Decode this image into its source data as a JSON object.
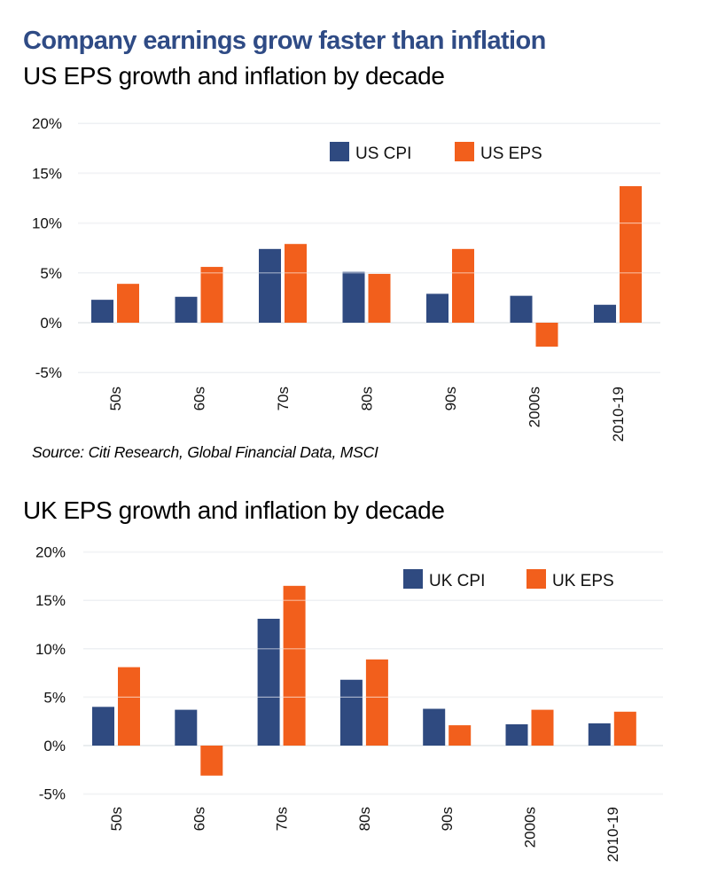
{
  "headline": "Company earnings grow faster than inflation",
  "source": "Source: Citi Research, Global Financial Data, MSCI",
  "colors": {
    "cpi": "#2f4a80",
    "eps": "#f25f1c",
    "grid": "#e3e7ea",
    "headline": "#2f4b85"
  },
  "chart_data": [
    {
      "type": "bar",
      "title": "US EPS growth and inflation by decade",
      "categories": [
        "50s",
        "60s",
        "70s",
        "80s",
        "90s",
        "2000s",
        "2010-19"
      ],
      "series": [
        {
          "name": "US CPI",
          "values": [
            2.3,
            2.6,
            7.4,
            5.1,
            2.9,
            2.7,
            1.8
          ]
        },
        {
          "name": "US EPS",
          "values": [
            3.9,
            5.6,
            7.9,
            4.9,
            7.4,
            -2.4,
            13.7
          ]
        }
      ],
      "xlabel": "",
      "ylabel": "",
      "ylim": [
        -5,
        20
      ],
      "yticks": [
        20,
        15,
        10,
        5,
        0,
        -5
      ],
      "ytick_labels": [
        "20%",
        "15%",
        "10%",
        "5%",
        "0%",
        "-5%"
      ],
      "grid": true,
      "legend": "top-right",
      "unit": "%"
    },
    {
      "type": "bar",
      "title": "UK EPS growth and inflation by decade",
      "categories": [
        "50s",
        "60s",
        "70s",
        "80s",
        "90s",
        "2000s",
        "2010-19"
      ],
      "series": [
        {
          "name": "UK CPI",
          "values": [
            4.0,
            3.7,
            13.1,
            6.8,
            3.8,
            2.2,
            2.3
          ]
        },
        {
          "name": "UK EPS",
          "values": [
            8.1,
            -3.1,
            16.5,
            8.9,
            2.1,
            3.7,
            3.5
          ]
        }
      ],
      "xlabel": "",
      "ylabel": "",
      "ylim": [
        -5,
        20
      ],
      "yticks": [
        20,
        15,
        10,
        5,
        0,
        -5
      ],
      "ytick_labels": [
        "20%",
        "15%",
        "10%",
        "5%",
        "0%",
        "-5%"
      ],
      "grid": true,
      "legend": "top-right",
      "unit": "%"
    }
  ]
}
